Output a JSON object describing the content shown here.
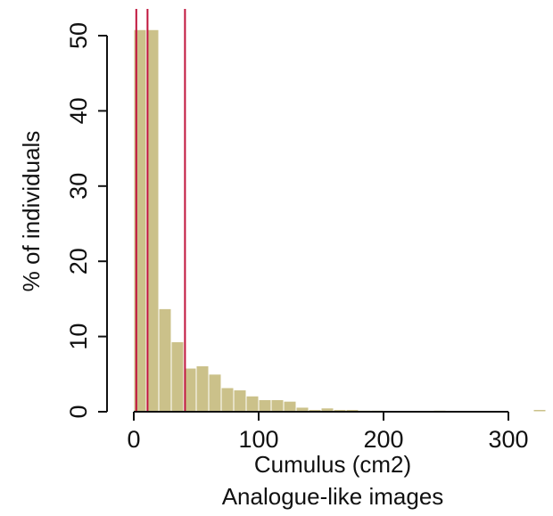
{
  "chart_data": {
    "type": "bar",
    "title": "",
    "xlabel": "Cumulus (cm2)",
    "subtitle": "Analogue-like images",
    "ylabel": "% of individuals",
    "xlim": [
      -25,
      330
    ],
    "ylim": [
      0,
      54
    ],
    "xticks": [
      0,
      100,
      200,
      300
    ],
    "yticks": [
      0,
      10,
      20,
      30,
      40,
      50
    ],
    "bin_width": 10,
    "bins": [
      {
        "x0": 0,
        "x1": 10,
        "value": 50.8
      },
      {
        "x0": 10,
        "x1": 20,
        "value": 50.8
      },
      {
        "x0": 20,
        "x1": 30,
        "value": 13.7
      },
      {
        "x0": 30,
        "x1": 40,
        "value": 9.3
      },
      {
        "x0": 40,
        "x1": 50,
        "value": 5.8
      },
      {
        "x0": 50,
        "x1": 60,
        "value": 6.1
      },
      {
        "x0": 60,
        "x1": 70,
        "value": 5.0
      },
      {
        "x0": 70,
        "x1": 80,
        "value": 3.2
      },
      {
        "x0": 80,
        "x1": 90,
        "value": 2.9
      },
      {
        "x0": 90,
        "x1": 100,
        "value": 2.1
      },
      {
        "x0": 100,
        "x1": 110,
        "value": 1.6
      },
      {
        "x0": 110,
        "x1": 120,
        "value": 1.6
      },
      {
        "x0": 120,
        "x1": 130,
        "value": 1.4
      },
      {
        "x0": 130,
        "x1": 140,
        "value": 0.6
      },
      {
        "x0": 140,
        "x1": 150,
        "value": 0.3
      },
      {
        "x0": 150,
        "x1": 160,
        "value": 0.5
      },
      {
        "x0": 160,
        "x1": 170,
        "value": 0.3
      },
      {
        "x0": 170,
        "x1": 180,
        "value": 0.3
      },
      {
        "x0": 180,
        "x1": 190,
        "value": 0.2
      },
      {
        "x0": 190,
        "x1": 200,
        "value": 0.2
      },
      {
        "x0": 200,
        "x1": 210,
        "value": 0.1
      },
      {
        "x0": 240,
        "x1": 250,
        "value": 0.2
      },
      {
        "x0": 320,
        "x1": 330,
        "value": 0.3
      }
    ],
    "reference_lines_x": [
      2,
      11,
      41
    ],
    "colors": {
      "bar_fill": "#cbc18a",
      "bar_edge": "#ffffff",
      "reference_line": "#c0143c",
      "axis": "#111111"
    },
    "grid": false,
    "legend": "none"
  }
}
